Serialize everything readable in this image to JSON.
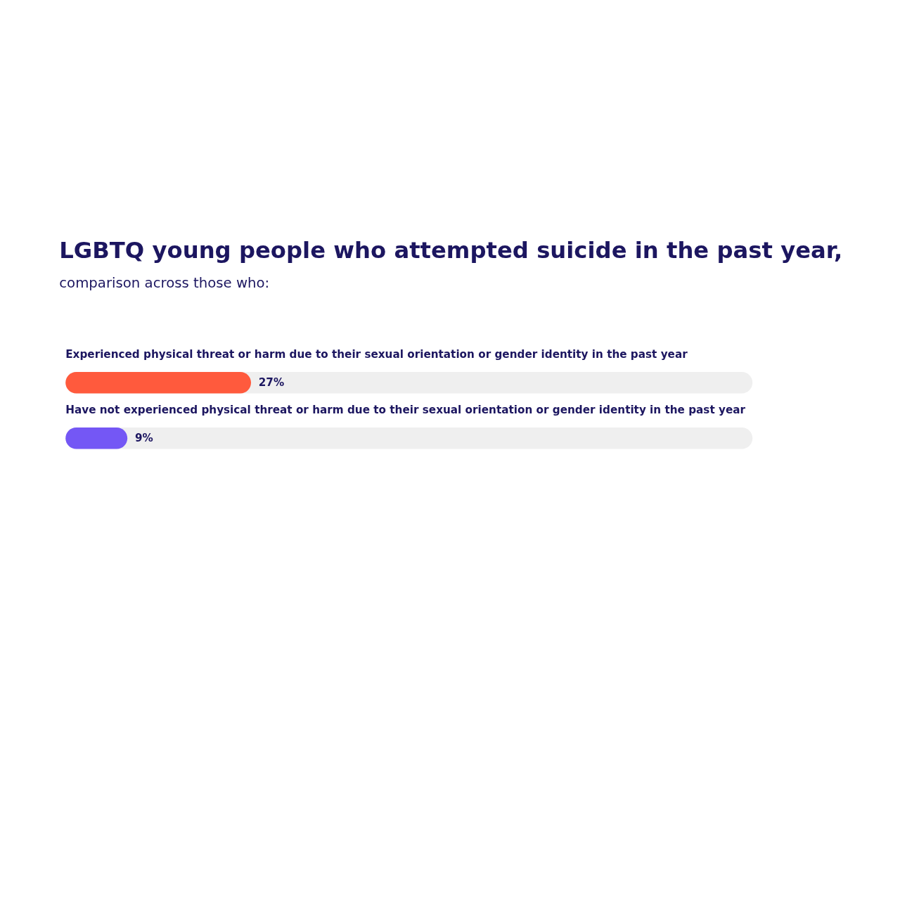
{
  "chart_data": {
    "type": "bar",
    "orientation": "horizontal",
    "title": "LGBTQ young people who attempted suicide in the past year,",
    "subtitle": "comparison across those who:",
    "categories": [
      "Experienced physical threat or harm due to their sexual orientation or gender identity in the past year",
      "Have not experienced physical threat or harm due to their sexual orientation or gender identity in the past year"
    ],
    "values": [
      27,
      9
    ],
    "value_labels": [
      "27%",
      "9%"
    ],
    "colors": [
      "#ff5a3d",
      "#7457f5"
    ],
    "xlim": [
      0,
      100
    ],
    "tick_labels": false
  }
}
